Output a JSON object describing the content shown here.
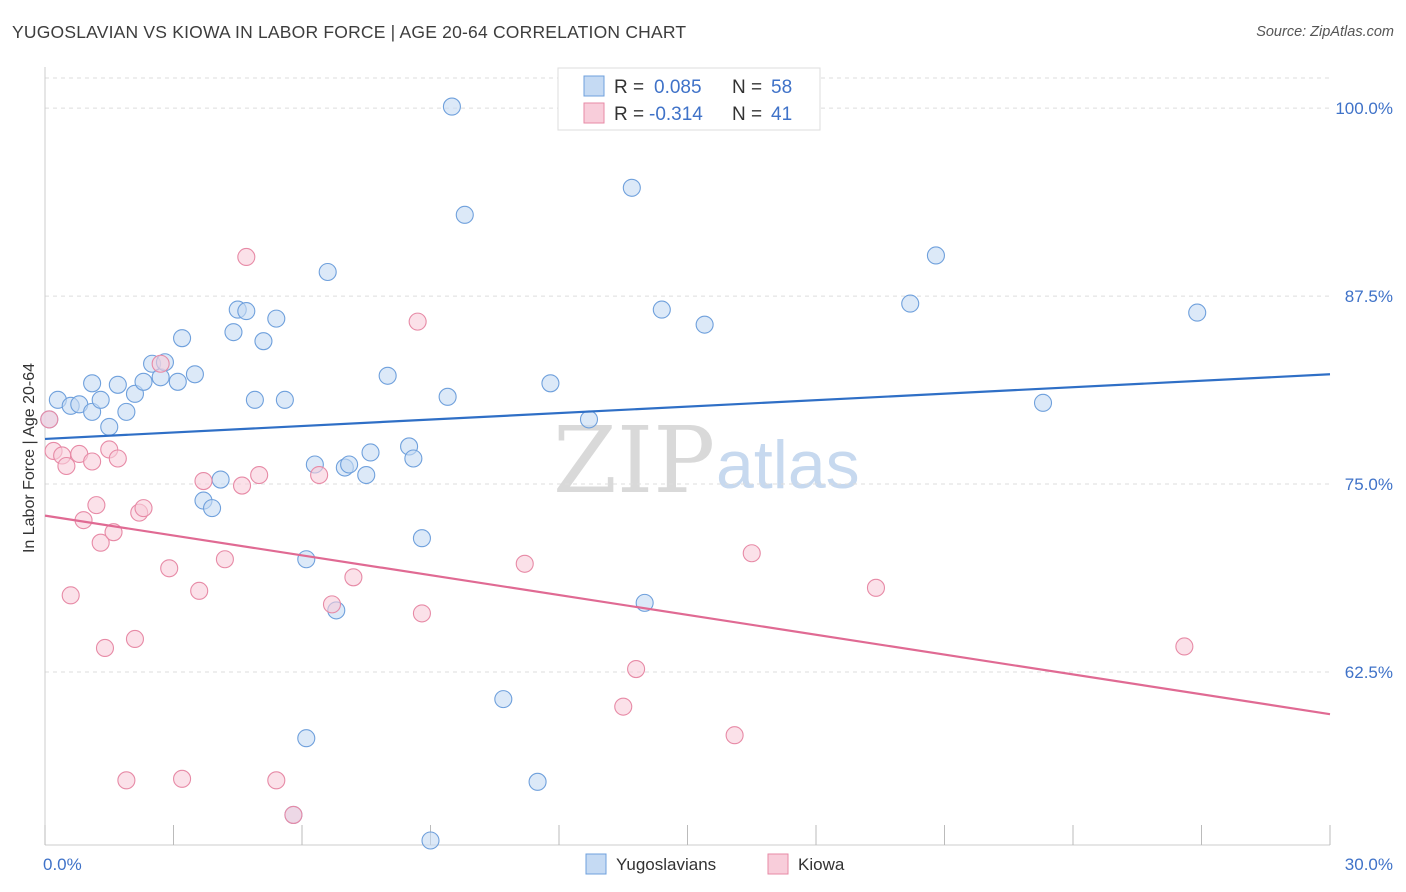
{
  "title": "YUGOSLAVIAN VS KIOWA IN LABOR FORCE | AGE 20-64 CORRELATION CHART",
  "source": "Source: ZipAtlas.com",
  "watermark": {
    "zip": "ZIP",
    "atlas": "atlas"
  },
  "colors": {
    "yugoslavians": "#6fa0dc",
    "yugoslavians_fill": "#c5daf3",
    "yugoslavians_line": "#2f6fc6",
    "kiowa": "#e78aa6",
    "kiowa_fill": "#f8cdda",
    "kiowa_line": "#e06a93",
    "tick_label": "#3f72c8",
    "grid": "#dddddd"
  },
  "legend": {
    "rows": [
      {
        "r_label": "R =",
        "r_value": "0.085",
        "n_label": "N =",
        "n_value": "58"
      },
      {
        "r_label": "R =",
        "r_value": "-0.314",
        "n_label": "N =",
        "n_value": "41"
      }
    ]
  },
  "chart_data": {
    "type": "scatter",
    "title": "YUGOSLAVIAN VS KIOWA IN LABOR FORCE | AGE 20-64 CORRELATION CHART",
    "xlabel": "",
    "ylabel": "In Labor Force | Age 20-64",
    "xlim": [
      0.0,
      30.0
    ],
    "ylim": [
      51.0,
      102.0
    ],
    "x_tick_labels": [
      "0.0%",
      "30.0%"
    ],
    "y_ticks": [
      62.5,
      75.0,
      87.5,
      100.0
    ],
    "y_tick_labels": [
      "62.5%",
      "75.0%",
      "87.5%",
      "100.0%"
    ],
    "grid": true,
    "legend_position": "top-center",
    "series": [
      {
        "name": "Yugoslavians",
        "r": 0.085,
        "n": 58,
        "trend": {
          "x": [
            0.0,
            30.0
          ],
          "y": [
            78.0,
            82.3
          ]
        },
        "points": [
          {
            "x": 0.1,
            "y": 79.3
          },
          {
            "x": 0.3,
            "y": 80.6
          },
          {
            "x": 0.6,
            "y": 80.2
          },
          {
            "x": 0.8,
            "y": 80.3
          },
          {
            "x": 1.1,
            "y": 81.7
          },
          {
            "x": 1.1,
            "y": 79.8
          },
          {
            "x": 1.3,
            "y": 80.6
          },
          {
            "x": 1.5,
            "y": 78.8
          },
          {
            "x": 1.7,
            "y": 81.6
          },
          {
            "x": 1.9,
            "y": 79.8
          },
          {
            "x": 2.1,
            "y": 81.0
          },
          {
            "x": 2.3,
            "y": 81.8
          },
          {
            "x": 2.5,
            "y": 83.0
          },
          {
            "x": 2.7,
            "y": 82.1
          },
          {
            "x": 2.8,
            "y": 83.1
          },
          {
            "x": 3.1,
            "y": 81.8
          },
          {
            "x": 3.2,
            "y": 84.7
          },
          {
            "x": 3.5,
            "y": 82.3
          },
          {
            "x": 3.7,
            "y": 73.9
          },
          {
            "x": 3.9,
            "y": 73.4
          },
          {
            "x": 4.1,
            "y": 75.3
          },
          {
            "x": 4.4,
            "y": 85.1
          },
          {
            "x": 4.5,
            "y": 86.6
          },
          {
            "x": 4.7,
            "y": 86.5
          },
          {
            "x": 4.9,
            "y": 80.6
          },
          {
            "x": 5.1,
            "y": 84.5
          },
          {
            "x": 5.4,
            "y": 86.0
          },
          {
            "x": 5.6,
            "y": 80.6
          },
          {
            "x": 5.8,
            "y": 53.0
          },
          {
            "x": 6.1,
            "y": 58.1
          },
          {
            "x": 6.1,
            "y": 70.0
          },
          {
            "x": 6.3,
            "y": 76.3
          },
          {
            "x": 6.6,
            "y": 89.1
          },
          {
            "x": 6.8,
            "y": 66.6
          },
          {
            "x": 7.0,
            "y": 76.1
          },
          {
            "x": 7.1,
            "y": 76.3
          },
          {
            "x": 7.5,
            "y": 75.6
          },
          {
            "x": 7.6,
            "y": 77.1
          },
          {
            "x": 8.0,
            "y": 82.2
          },
          {
            "x": 8.5,
            "y": 77.5
          },
          {
            "x": 8.6,
            "y": 76.7
          },
          {
            "x": 8.8,
            "y": 71.4
          },
          {
            "x": 9.0,
            "y": 51.3
          },
          {
            "x": 9.4,
            "y": 80.8
          },
          {
            "x": 9.5,
            "y": 100.1
          },
          {
            "x": 9.8,
            "y": 92.9
          },
          {
            "x": 10.7,
            "y": 60.7
          },
          {
            "x": 11.5,
            "y": 55.2
          },
          {
            "x": 11.8,
            "y": 81.7
          },
          {
            "x": 12.7,
            "y": 79.3
          },
          {
            "x": 13.7,
            "y": 94.7
          },
          {
            "x": 14.0,
            "y": 67.1
          },
          {
            "x": 14.4,
            "y": 86.6
          },
          {
            "x": 15.4,
            "y": 85.6
          },
          {
            "x": 20.2,
            "y": 87.0
          },
          {
            "x": 20.8,
            "y": 90.2
          },
          {
            "x": 23.3,
            "y": 80.4
          },
          {
            "x": 26.9,
            "y": 86.4
          }
        ]
      },
      {
        "name": "Kiowa",
        "r": -0.314,
        "n": 41,
        "trend": {
          "x": [
            0.0,
            30.0
          ],
          "y": [
            72.9,
            59.7
          ]
        },
        "points": [
          {
            "x": 0.1,
            "y": 79.3
          },
          {
            "x": 0.2,
            "y": 77.2
          },
          {
            "x": 0.4,
            "y": 76.9
          },
          {
            "x": 0.5,
            "y": 76.2
          },
          {
            "x": 0.6,
            "y": 67.6
          },
          {
            "x": 0.8,
            "y": 77.0
          },
          {
            "x": 0.9,
            "y": 72.6
          },
          {
            "x": 1.1,
            "y": 76.5
          },
          {
            "x": 1.2,
            "y": 73.6
          },
          {
            "x": 1.3,
            "y": 71.1
          },
          {
            "x": 1.4,
            "y": 64.1
          },
          {
            "x": 1.5,
            "y": 77.3
          },
          {
            "x": 1.6,
            "y": 71.8
          },
          {
            "x": 1.7,
            "y": 76.7
          },
          {
            "x": 1.9,
            "y": 55.3
          },
          {
            "x": 2.1,
            "y": 64.7
          },
          {
            "x": 2.2,
            "y": 73.1
          },
          {
            "x": 2.3,
            "y": 73.4
          },
          {
            "x": 2.7,
            "y": 83.0
          },
          {
            "x": 2.9,
            "y": 69.4
          },
          {
            "x": 3.2,
            "y": 55.4
          },
          {
            "x": 3.6,
            "y": 67.9
          },
          {
            "x": 3.7,
            "y": 75.2
          },
          {
            "x": 4.2,
            "y": 70.0
          },
          {
            "x": 4.6,
            "y": 74.9
          },
          {
            "x": 4.7,
            "y": 90.1
          },
          {
            "x": 5.0,
            "y": 75.6
          },
          {
            "x": 5.4,
            "y": 55.3
          },
          {
            "x": 5.8,
            "y": 53.0
          },
          {
            "x": 6.4,
            "y": 75.6
          },
          {
            "x": 6.7,
            "y": 67.0
          },
          {
            "x": 7.2,
            "y": 68.8
          },
          {
            "x": 8.7,
            "y": 85.8
          },
          {
            "x": 8.8,
            "y": 66.4
          },
          {
            "x": 11.2,
            "y": 69.7
          },
          {
            "x": 13.5,
            "y": 60.2
          },
          {
            "x": 13.8,
            "y": 62.7
          },
          {
            "x": 16.1,
            "y": 58.3
          },
          {
            "x": 16.5,
            "y": 70.4
          },
          {
            "x": 19.4,
            "y": 68.1
          },
          {
            "x": 26.6,
            "y": 64.2
          }
        ]
      }
    ]
  }
}
